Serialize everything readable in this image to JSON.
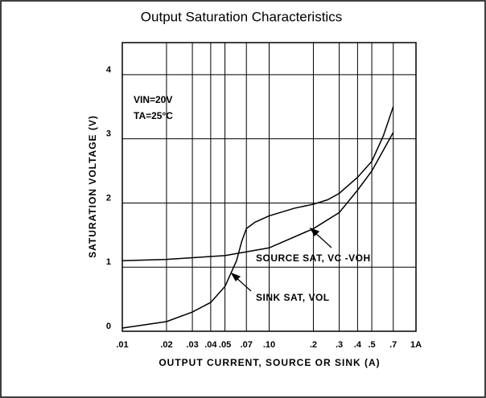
{
  "chart_data": {
    "type": "line",
    "title": "Output Saturation Characteristics",
    "xlabel": "OUTPUT CURRENT, SOURCE OR SINK (A)",
    "ylabel": "SATURATION VOLTAGE (V)",
    "annotations": [
      "VIN=20V",
      "TA=25°C"
    ],
    "xscale": "log",
    "xlim": [
      0.01,
      1
    ],
    "ylim": [
      0,
      4.5
    ],
    "xticks": [
      {
        "value": 0.01,
        "label": ".01"
      },
      {
        "value": 0.02,
        "label": ".02"
      },
      {
        "value": 0.03,
        "label": ".03"
      },
      {
        "value": 0.04,
        "label": ".04"
      },
      {
        "value": 0.05,
        "label": ".05"
      },
      {
        "value": 0.07,
        "label": ".07"
      },
      {
        "value": 0.1,
        "label": ".10"
      },
      {
        "value": 0.2,
        "label": ".2"
      },
      {
        "value": 0.3,
        "label": ".3"
      },
      {
        "value": 0.4,
        "label": ".4"
      },
      {
        "value": 0.5,
        "label": ".5"
      },
      {
        "value": 0.7,
        "label": ".7"
      },
      {
        "value": 1,
        "label": "1A"
      }
    ],
    "yticks": [
      0,
      1,
      2,
      3,
      4
    ],
    "grid": true,
    "series": [
      {
        "name": "SOURCE SAT, VC -VOH",
        "color": "#000000",
        "x": [
          0.01,
          0.02,
          0.05,
          0.1,
          0.2,
          0.3,
          0.4,
          0.5,
          0.7
        ],
        "values": [
          1.1,
          1.12,
          1.18,
          1.3,
          1.6,
          1.85,
          2.2,
          2.5,
          3.1
        ]
      },
      {
        "name": "SINK SAT, VOL",
        "color": "#000000",
        "x": [
          0.01,
          0.02,
          0.03,
          0.04,
          0.05,
          0.06,
          0.065,
          0.07,
          0.08,
          0.1,
          0.15,
          0.2,
          0.25,
          0.3,
          0.4,
          0.5,
          0.6,
          0.7
        ],
        "values": [
          0.05,
          0.15,
          0.3,
          0.45,
          0.7,
          1.1,
          1.4,
          1.6,
          1.7,
          1.8,
          1.92,
          1.98,
          2.05,
          2.15,
          2.4,
          2.65,
          3.05,
          3.5
        ]
      }
    ]
  }
}
